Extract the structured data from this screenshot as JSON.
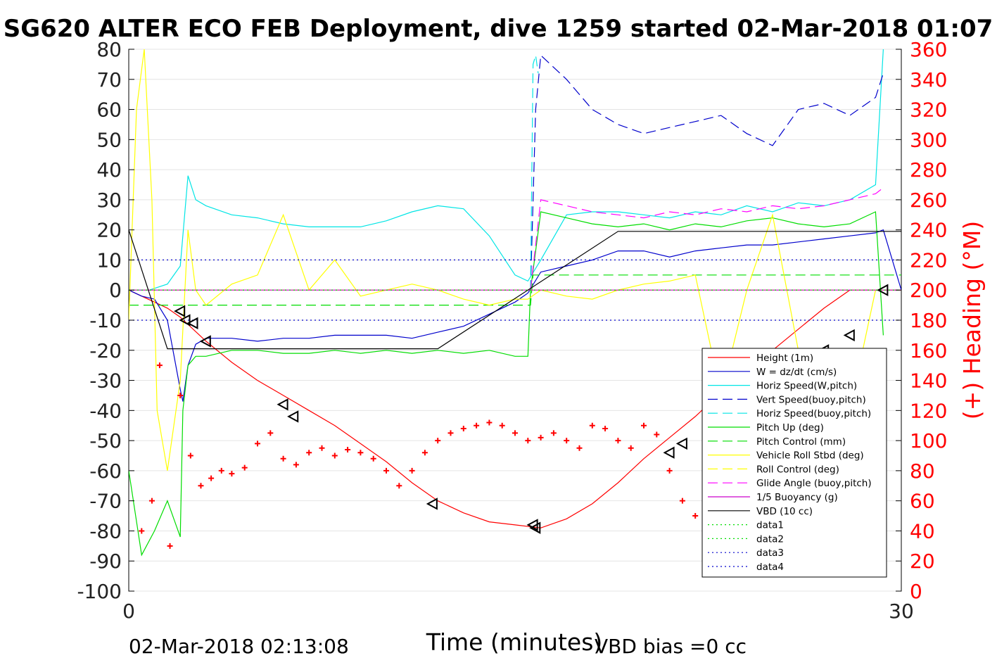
{
  "chart_data": {
    "type": "line",
    "title": "SG620 ALTER ECO FEB Deployment, dive 1259 started 02-Mar-2018 01:07",
    "xlabel": "Time (minutes)",
    "ylabel_right": "(+) Heading (°M)",
    "footer_left": "02-Mar-2018 02:13:08",
    "footer_right": "VBD bias =0 cc",
    "xlim": [
      0,
      30
    ],
    "ylim": [
      -100,
      80
    ],
    "ylim_right": [
      0,
      360
    ],
    "x_ticks": [
      "0",
      "30"
    ],
    "y_ticks": [
      "80",
      "70",
      "60",
      "50",
      "40",
      "30",
      "20",
      "10",
      "0",
      "-10",
      "-20",
      "-30",
      "-40",
      "-50",
      "-60",
      "-70",
      "-80",
      "-90",
      "-100"
    ],
    "y_ticks_right": [
      "360",
      "340",
      "320",
      "300",
      "280",
      "260",
      "240",
      "220",
      "200",
      "180",
      "160",
      "140",
      "120",
      "100",
      "80",
      "60",
      "40",
      "20",
      "0"
    ],
    "legend_position": "lower-right",
    "colors": {
      "height": "#ff0000",
      "w": "#0000cc",
      "horiz": "#00e5e5",
      "vert_buoy": "#0000cc",
      "pitch": "#00dd00",
      "roll": "#ffff00",
      "glide": "#ff00ff",
      "vbd": "#000000",
      "heading": "#ff0000",
      "right_axis": "#ff0000"
    },
    "legend": [
      {
        "label": "Height (1m)",
        "color": "#ff0000",
        "dash": ""
      },
      {
        "label": "W = dz/dt (cm/s)",
        "color": "#0000cc",
        "dash": ""
      },
      {
        "label": "Horiz Speed(W,pitch)",
        "color": "#00e5e5",
        "dash": ""
      },
      {
        "label": "Vert Speed(buoy,pitch)",
        "color": "#0000cc",
        "dash": "14,7"
      },
      {
        "label": "Horiz Speed(buoy,pitch)",
        "color": "#00e5e5",
        "dash": "14,7"
      },
      {
        "label": "Pitch Up (deg)",
        "color": "#00dd00",
        "dash": ""
      },
      {
        "label": "Pitch Control (mm)",
        "color": "#00dd00",
        "dash": "14,7"
      },
      {
        "label": "Vehicle Roll Stbd (deg)",
        "color": "#ffff00",
        "dash": ""
      },
      {
        "label": "Roll Control (deg)",
        "color": "#ffff00",
        "dash": "14,7"
      },
      {
        "label": "Glide Angle (buoy,pitch)",
        "color": "#ff00ff",
        "dash": "14,7"
      },
      {
        "label": "1/5 Buoyancy (g)",
        "color": "#cc00cc",
        "dash": ""
      },
      {
        "label": "VBD (10 cc)",
        "color": "#000000",
        "dash": ""
      },
      {
        "label": "data1",
        "color": "#00dd00",
        "dash": "2,4"
      },
      {
        "label": "data2",
        "color": "#00dd00",
        "dash": "2,4"
      },
      {
        "label": "data3",
        "color": "#0000cc",
        "dash": "2,4"
      },
      {
        "label": "data4",
        "color": "#0000cc",
        "dash": "2,4"
      }
    ],
    "series": [
      {
        "name": "Height (1m)",
        "x": [
          0,
          0.5,
          1,
          1.5,
          2,
          3,
          4,
          5,
          6,
          7,
          8,
          9,
          10,
          11,
          12,
          13,
          14,
          15,
          16,
          17,
          18,
          19,
          20,
          21,
          22,
          23,
          24,
          25,
          26,
          27,
          28,
          29,
          30
        ],
        "y": [
          0,
          -2,
          -4,
          -6,
          -9,
          -17,
          -24,
          -30,
          -35,
          -40,
          -45,
          -51,
          -57,
          -64,
          -70,
          -74,
          -77,
          -78,
          -79,
          -76,
          -71,
          -64,
          -56,
          -49,
          -42,
          -34,
          -27,
          -20,
          -13,
          -6,
          0,
          0,
          0
        ]
      },
      {
        "name": "W = dz/dt (cm/s)",
        "x": [
          0,
          0.5,
          1,
          1.5,
          2,
          2.1,
          2.3,
          2.6,
          3,
          4,
          5,
          6,
          7,
          8,
          9,
          10,
          11,
          12,
          13,
          14,
          15,
          15.5,
          16,
          17,
          18,
          19,
          20,
          21,
          22,
          23,
          24,
          25,
          26,
          27,
          28,
          29,
          29.3,
          30
        ],
        "y": [
          0,
          -2,
          -3,
          -10,
          -33,
          -37,
          -25,
          -18,
          -16,
          -16,
          -17,
          -16,
          -16,
          -15,
          -15,
          -15,
          -16,
          -14,
          -12,
          -8,
          -4,
          -1,
          6,
          8,
          10,
          13,
          13,
          11,
          13,
          14,
          15,
          15,
          16,
          17,
          18,
          19,
          20,
          0
        ]
      },
      {
        "name": "Horiz Speed(W,pitch)",
        "x": [
          0,
          0.8,
          1.5,
          2,
          2.3,
          2.6,
          3,
          4,
          5,
          6,
          7,
          8,
          9,
          10,
          11,
          12,
          13,
          14,
          15,
          15.5,
          16,
          17,
          18,
          19,
          20,
          21,
          22,
          23,
          24,
          25,
          26,
          27,
          28,
          29,
          29.3
        ],
        "y": [
          0,
          0,
          2,
          8,
          38,
          30,
          28,
          25,
          24,
          22,
          21,
          21,
          21,
          23,
          26,
          28,
          27,
          18,
          5,
          3,
          10,
          25,
          26,
          26,
          25,
          24,
          26,
          25,
          28,
          26,
          29,
          28,
          30,
          35,
          80
        ]
      },
      {
        "name": "Vert Speed(buoy,pitch)",
        "x": [
          15.6,
          15.8,
          16,
          17,
          18,
          19,
          20,
          21,
          22,
          23,
          24,
          25,
          26,
          27,
          28,
          29,
          29.3
        ],
        "y": [
          0,
          60,
          78,
          70,
          60,
          55,
          52,
          54,
          56,
          58,
          52,
          48,
          60,
          62,
          58,
          64,
          72
        ]
      },
      {
        "name": "Horiz Speed(buoy,pitch)",
        "x": [
          15.6,
          15.7,
          15.8,
          15.9
        ],
        "y": [
          0,
          75,
          78,
          72
        ]
      },
      {
        "name": "Pitch Up (deg)",
        "x": [
          0,
          0.5,
          1,
          1.5,
          2,
          2.1,
          2.3,
          2.6,
          3,
          4,
          5,
          6,
          7,
          8,
          9,
          10,
          11,
          12,
          13,
          14,
          15,
          15.5,
          15.6,
          16,
          17,
          18,
          19,
          20,
          21,
          22,
          23,
          24,
          25,
          26,
          27,
          28,
          29,
          29.3
        ],
        "y": [
          -60,
          -88,
          -80,
          -70,
          -82,
          -40,
          -25,
          -22,
          -22,
          -20,
          -20,
          -21,
          -21,
          -20,
          -21,
          -20,
          -21,
          -20,
          -21,
          -20,
          -22,
          -22,
          0,
          26,
          24,
          22,
          21,
          22,
          20,
          22,
          21,
          23,
          24,
          22,
          21,
          22,
          26,
          -15
        ]
      },
      {
        "name": "Pitch Control (mm)",
        "x": [
          0,
          2,
          15.6,
          15.7,
          30
        ],
        "y": [
          -5,
          -5,
          -5,
          5,
          5
        ]
      },
      {
        "name": "Vehicle Roll Stbd (deg)",
        "x": [
          0,
          0.3,
          0.6,
          0.9,
          1.1,
          1.5,
          2,
          2.3,
          2.6,
          3,
          4,
          5,
          6,
          7,
          8,
          9,
          10,
          11,
          12,
          13,
          14,
          15,
          15.5,
          16,
          17,
          18,
          19,
          20,
          21,
          22,
          23,
          24,
          25,
          26,
          27,
          28,
          29,
          29.3
        ],
        "y": [
          -10,
          60,
          80,
          30,
          -40,
          -60,
          -30,
          20,
          0,
          -5,
          2,
          5,
          25,
          0,
          10,
          -2,
          0,
          2,
          0,
          -3,
          -5,
          -3,
          -3,
          0,
          -2,
          -3,
          0,
          2,
          3,
          5,
          -35,
          0,
          25,
          -20,
          -25,
          -40,
          0,
          0
        ]
      },
      {
        "name": "Roll Control (deg)",
        "x": [
          0,
          30
        ],
        "y": [
          0,
          0
        ]
      },
      {
        "name": "Glide Angle (buoy,pitch)",
        "x": [
          15.6,
          16,
          17,
          18,
          19,
          20,
          21,
          22,
          23,
          24,
          25,
          26,
          27,
          28,
          29,
          29.3
        ],
        "y": [
          0,
          30,
          28,
          26,
          25,
          24,
          26,
          25,
          27,
          26,
          28,
          27,
          28,
          30,
          32,
          34
        ]
      },
      {
        "name": "1/5 Buoyancy (g)",
        "x": [
          0,
          15.6,
          15.7,
          30
        ],
        "y": [
          0,
          0,
          0,
          0
        ]
      },
      {
        "name": "VBD (10 cc)",
        "x": [
          0,
          1.5,
          12,
          19,
          30
        ],
        "y": [
          20,
          -19.5,
          -19.5,
          19.5,
          19.5
        ]
      },
      {
        "name": "data1",
        "x": [
          0,
          30
        ],
        "y": [
          0,
          0
        ]
      },
      {
        "name": "data2",
        "x": [
          0,
          30
        ],
        "y": [
          0,
          0
        ]
      },
      {
        "name": "data3",
        "x": [
          0,
          30
        ],
        "y": [
          10,
          10
        ]
      },
      {
        "name": "data4",
        "x": [
          0,
          30
        ],
        "y": [
          -10,
          -10
        ]
      }
    ],
    "heading_points": {
      "x": [
        0.5,
        0.9,
        1.2,
        1.6,
        2,
        2.4,
        2.8,
        3.2,
        3.6,
        4,
        4.5,
        5,
        5.5,
        6,
        6.5,
        7,
        7.5,
        8,
        8.5,
        9,
        9.5,
        10,
        10.5,
        11,
        11.5,
        12,
        12.5,
        13,
        13.5,
        14,
        14.5,
        15,
        15.5,
        16,
        16.5,
        17,
        17.5,
        18,
        18.5,
        19,
        19.5,
        20,
        20.5,
        21,
        21.5,
        22,
        22.5,
        23,
        23.5,
        24,
        24.5,
        25,
        25.5,
        26,
        26.5,
        27,
        27.5,
        28,
        28.5,
        29,
        29.3
      ],
      "y": [
        40,
        60,
        150,
        30,
        130,
        90,
        70,
        75,
        80,
        78,
        82,
        98,
        105,
        88,
        84,
        92,
        95,
        90,
        94,
        92,
        88,
        80,
        70,
        80,
        92,
        100,
        105,
        108,
        110,
        112,
        110,
        105,
        100,
        102,
        105,
        100,
        95,
        110,
        108,
        100,
        95,
        110,
        104,
        80,
        60,
        50,
        40,
        30,
        32,
        40,
        60,
        70,
        80,
        100,
        150,
        130,
        140,
        120,
        90,
        60,
        150
      ]
    },
    "markers": {
      "x": [
        2,
        2.2,
        2.5,
        3,
        6,
        6.4,
        11.8,
        15.7,
        15.8,
        21,
        21.5,
        23.5,
        25,
        27,
        28,
        29.3
      ],
      "y": [
        -7,
        -10,
        -11,
        -17,
        -38,
        -42,
        -71,
        -78,
        -79,
        -54,
        -51,
        -39,
        -33,
        -20,
        -15,
        0
      ]
    }
  }
}
